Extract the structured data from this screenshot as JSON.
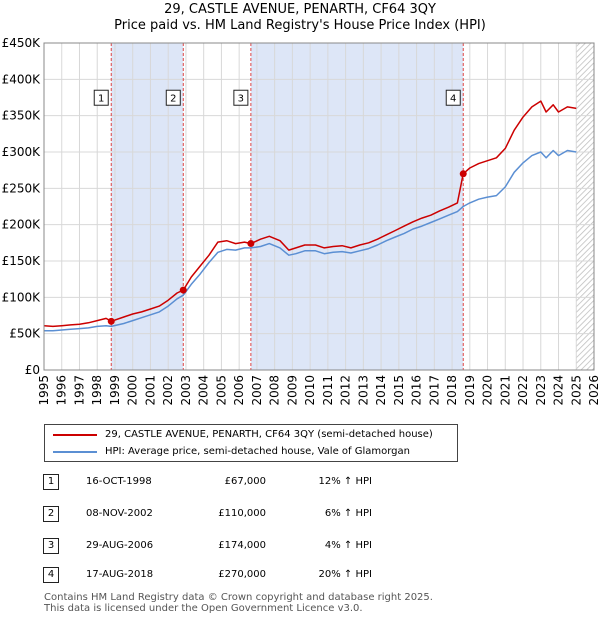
{
  "title_line1": "29, CASTLE AVENUE, PENARTH, CF64 3QY",
  "title_line2": "Price paid vs. HM Land Registry's House Price Index (HPI)",
  "chart_data": {
    "type": "line",
    "title": "29, CASTLE AVENUE, PENARTH, CF64 3QY — Price paid vs. HM Land Registry's House Price Index (HPI)",
    "xlim": [
      1995,
      2026
    ],
    "ylim": [
      0,
      450000
    ],
    "y_ticks": [
      0,
      50000,
      100000,
      150000,
      200000,
      250000,
      300000,
      350000,
      400000,
      450000
    ],
    "y_tick_labels": [
      "£0",
      "£50K",
      "£100K",
      "£150K",
      "£200K",
      "£250K",
      "£300K",
      "£350K",
      "£400K",
      "£450K"
    ],
    "x_ticks": [
      1995,
      1996,
      1997,
      1998,
      1999,
      2000,
      2001,
      2002,
      2003,
      2004,
      2005,
      2006,
      2007,
      2008,
      2009,
      2010,
      2011,
      2012,
      2013,
      2014,
      2015,
      2016,
      2017,
      2018,
      2019,
      2020,
      2021,
      2022,
      2023,
      2024,
      2025,
      2026
    ],
    "grid": true,
    "colors": {
      "property": "#cc0000",
      "hpi": "#5b8fd3",
      "shade": "#dde6f7",
      "marker": "#cc0000",
      "vline": "#dd4444"
    },
    "shaded_periods": [
      [
        1998.79,
        2002.85
      ],
      [
        2006.66,
        2018.63
      ]
    ],
    "future_from": 2025.0,
    "series": [
      {
        "name": "29, CASTLE AVENUE, PENARTH, CF64 3QY (semi-detached house)",
        "x": [
          1995,
          1995.5,
          1996,
          1996.5,
          1997,
          1997.5,
          1998,
          1998.5,
          1998.79,
          1999.5,
          2000,
          2000.5,
          2001,
          2001.5,
          2002,
          2002.5,
          2002.85,
          2003.3,
          2003.8,
          2004.3,
          2004.8,
          2005.3,
          2005.8,
          2006.3,
          2006.66,
          2007.2,
          2007.7,
          2008.3,
          2008.8,
          2009.2,
          2009.7,
          2010.3,
          2010.8,
          2011.3,
          2011.8,
          2012.3,
          2012.8,
          2013.3,
          2013.8,
          2014.3,
          2014.8,
          2015.3,
          2015.8,
          2016.3,
          2016.8,
          2017.3,
          2017.8,
          2018.3,
          2018.63,
          2019.0,
          2019.5,
          2020.0,
          2020.5,
          2021.0,
          2021.5,
          2022.0,
          2022.5,
          2023.0,
          2023.3,
          2023.7,
          2024.0,
          2024.5,
          2025.0
        ],
        "values": [
          61000,
          60000,
          61000,
          62000,
          63000,
          65000,
          68000,
          71000,
          67000,
          73000,
          77000,
          80000,
          84000,
          88000,
          96000,
          106000,
          110000,
          128000,
          143000,
          158000,
          176000,
          178000,
          174000,
          176000,
          174000,
          180000,
          184000,
          178000,
          165000,
          168000,
          172000,
          172000,
          168000,
          170000,
          171000,
          168000,
          172000,
          175000,
          180000,
          186000,
          192000,
          198000,
          204000,
          209000,
          213000,
          219000,
          224000,
          230000,
          270000,
          278000,
          284000,
          288000,
          292000,
          305000,
          330000,
          348000,
          362000,
          370000,
          355000,
          365000,
          355000,
          362000,
          360000
        ]
      },
      {
        "name": "HPI: Average price, semi-detached house, Vale of Glamorgan",
        "x": [
          1995,
          1995.5,
          1996,
          1996.5,
          1997,
          1997.5,
          1998,
          1998.5,
          1998.79,
          1999.5,
          2000,
          2000.5,
          2001,
          2001.5,
          2002,
          2002.5,
          2002.85,
          2003.3,
          2003.8,
          2004.3,
          2004.8,
          2005.3,
          2005.8,
          2006.3,
          2006.66,
          2007.2,
          2007.7,
          2008.3,
          2008.8,
          2009.2,
          2009.7,
          2010.3,
          2010.8,
          2011.3,
          2011.8,
          2012.3,
          2012.8,
          2013.3,
          2013.8,
          2014.3,
          2014.8,
          2015.3,
          2015.8,
          2016.3,
          2016.8,
          2017.3,
          2017.8,
          2018.3,
          2018.63,
          2019.0,
          2019.5,
          2020.0,
          2020.5,
          2021.0,
          2021.5,
          2022.0,
          2022.5,
          2023.0,
          2023.3,
          2023.7,
          2024.0,
          2024.5,
          2025.0
        ],
        "values": [
          54000,
          54000,
          55000,
          56000,
          57000,
          58000,
          60000,
          61000,
          60000,
          64000,
          68000,
          72000,
          76000,
          80000,
          88000,
          98000,
          103000,
          118000,
          132000,
          148000,
          162000,
          166000,
          165000,
          168000,
          168000,
          170000,
          174000,
          168000,
          158000,
          160000,
          164000,
          164000,
          160000,
          162000,
          163000,
          161000,
          164000,
          167000,
          172000,
          178000,
          183000,
          188000,
          194000,
          198000,
          203000,
          208000,
          213000,
          218000,
          225000,
          230000,
          235000,
          238000,
          240000,
          252000,
          272000,
          285000,
          295000,
          300000,
          292000,
          302000,
          295000,
          302000,
          300000
        ]
      }
    ],
    "sales": [
      {
        "n": 1,
        "x": 1998.79,
        "y": 67000
      },
      {
        "n": 2,
        "x": 2002.85,
        "y": 110000
      },
      {
        "n": 3,
        "x": 2006.66,
        "y": 174000
      },
      {
        "n": 4,
        "x": 2018.63,
        "y": 270000
      }
    ],
    "marker_label_y": 385000
  },
  "legend": {
    "property": "29, CASTLE AVENUE, PENARTH, CF64 3QY (semi-detached house)",
    "hpi": "HPI: Average price, semi-detached house, Vale of Glamorgan"
  },
  "sales_table": [
    {
      "n": "1",
      "date": "16-OCT-1998",
      "price": "£67,000",
      "hpi": "12% ↑ HPI"
    },
    {
      "n": "2",
      "date": "08-NOV-2002",
      "price": "£110,000",
      "hpi": "6% ↑ HPI"
    },
    {
      "n": "3",
      "date": "29-AUG-2006",
      "price": "£174,000",
      "hpi": "4% ↑ HPI"
    },
    {
      "n": "4",
      "date": "17-AUG-2018",
      "price": "£270,000",
      "hpi": "20% ↑ HPI"
    }
  ],
  "footer_line1": "Contains HM Land Registry data © Crown copyright and database right 2025.",
  "footer_line2": "This data is licensed under the Open Government Licence v3.0."
}
